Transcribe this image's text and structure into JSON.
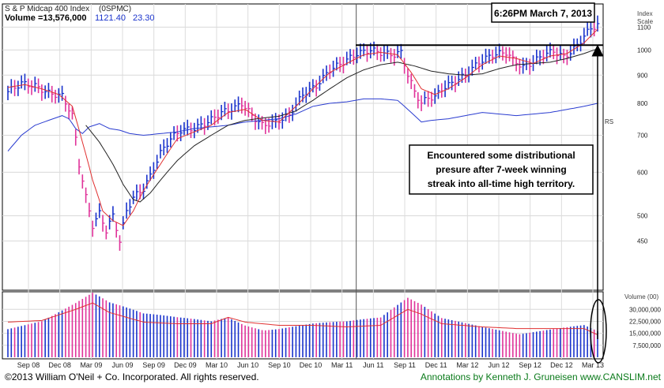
{
  "header": {
    "index_name": "S & P Midcap 400 Index",
    "symbol": "(0SPMC)",
    "volume_label": "Volume =13,576,000",
    "price": "1121.40",
    "change": "23.30",
    "timestamp": "6:26PM March 7, 2013"
  },
  "axis": {
    "index_title": "Index",
    "scale_title": "Scale",
    "volume_title": "Volume (00)",
    "rs_label": "RS"
  },
  "annotation": {
    "line1": "Encountered some distributional",
    "line2": "presure after 7-week winning",
    "line3": "streak into all-time high territory."
  },
  "footer": {
    "copyright": "©2013 William O'Neil + Co. Incorporated. All rights reserved.",
    "annotations_by": "Annotations by Kenneth J. Gruneisen www.CANSLIM.net"
  },
  "colors": {
    "up_bar": "#1a33cc",
    "down_bar": "#e0339a",
    "ma_short": "#e03030",
    "ma_long": "#222222",
    "rs_line": "#2a3cd0",
    "footer_left": "#000000",
    "footer_right": "#0a7a1a"
  },
  "chart_data": {
    "type": "bar",
    "ylim": [
      370,
      1200
    ],
    "price_ticks": [
      1100,
      1000,
      900,
      800,
      700,
      600,
      500,
      450
    ],
    "volume_ticks": [
      "30,000,000",
      "22,500,000",
      "15,000,000",
      "7,500,000"
    ],
    "volume_tick_values": [
      30000000,
      22500000,
      15000000,
      7500000
    ],
    "volume_max": 40000000,
    "x_tick_labels": [
      "Sep 08",
      "Dec 08",
      "Mar 09",
      "Jun 09",
      "Sep 09",
      "Dec 09",
      "Mar 10",
      "Jun 10",
      "Sep 10",
      "Dec 10",
      "Mar 11",
      "Jun 11",
      "Sep 11",
      "Dec 11",
      "Mar 12",
      "Jun 12",
      "Sep 12",
      "Dec 12",
      "Mar 13"
    ],
    "price_keypoints": [
      [
        0,
        840
      ],
      [
        4,
        870
      ],
      [
        8,
        860
      ],
      [
        12,
        835
      ],
      [
        16,
        825
      ],
      [
        19,
        760
      ],
      [
        21,
        620
      ],
      [
        23,
        540
      ],
      [
        25,
        480
      ],
      [
        27,
        505
      ],
      [
        29,
        470
      ],
      [
        31,
        500
      ],
      [
        33,
        450
      ],
      [
        35,
        510
      ],
      [
        37,
        540
      ],
      [
        40,
        560
      ],
      [
        42,
        590
      ],
      [
        45,
        650
      ],
      [
        48,
        690
      ],
      [
        51,
        715
      ],
      [
        55,
        720
      ],
      [
        59,
        740
      ],
      [
        63,
        770
      ],
      [
        67,
        785
      ],
      [
        69,
        800
      ],
      [
        72,
        760
      ],
      [
        75,
        730
      ],
      [
        79,
        740
      ],
      [
        83,
        760
      ],
      [
        87,
        830
      ],
      [
        91,
        860
      ],
      [
        95,
        920
      ],
      [
        99,
        950
      ],
      [
        103,
        985
      ],
      [
        107,
        1000
      ],
      [
        111,
        985
      ],
      [
        114,
        980
      ],
      [
        116,
        990
      ],
      [
        118,
        900
      ],
      [
        120,
        840
      ],
      [
        122,
        800
      ],
      [
        124,
        820
      ],
      [
        126,
        820
      ],
      [
        128,
        850
      ],
      [
        131,
        870
      ],
      [
        135,
        900
      ],
      [
        139,
        950
      ],
      [
        143,
        980
      ],
      [
        147,
        990
      ],
      [
        149,
        960
      ],
      [
        152,
        930
      ],
      [
        155,
        950
      ],
      [
        158,
        980
      ],
      [
        161,
        995
      ],
      [
        164,
        970
      ],
      [
        166,
        990
      ],
      [
        168,
        1020
      ],
      [
        170,
        1060
      ],
      [
        172,
        1095
      ],
      [
        174,
        1110
      ]
    ],
    "ma_short_keypoints": [
      [
        0,
        855
      ],
      [
        5,
        865
      ],
      [
        10,
        850
      ],
      [
        15,
        830
      ],
      [
        19,
        790
      ],
      [
        22,
        680
      ],
      [
        25,
        580
      ],
      [
        28,
        510
      ],
      [
        31,
        490
      ],
      [
        34,
        480
      ],
      [
        37,
        510
      ],
      [
        40,
        555
      ],
      [
        45,
        620
      ],
      [
        50,
        690
      ],
      [
        55,
        710
      ],
      [
        60,
        730
      ],
      [
        65,
        770
      ],
      [
        70,
        780
      ],
      [
        75,
        745
      ],
      [
        80,
        740
      ],
      [
        85,
        790
      ],
      [
        90,
        850
      ],
      [
        95,
        910
      ],
      [
        100,
        945
      ],
      [
        105,
        980
      ],
      [
        110,
        990
      ],
      [
        115,
        980
      ],
      [
        119,
        910
      ],
      [
        122,
        850
      ],
      [
        126,
        830
      ],
      [
        130,
        850
      ],
      [
        135,
        890
      ],
      [
        140,
        940
      ],
      [
        145,
        975
      ],
      [
        150,
        965
      ],
      [
        155,
        945
      ],
      [
        160,
        975
      ],
      [
        165,
        985
      ],
      [
        170,
        1030
      ],
      [
        174,
        1090
      ]
    ],
    "ma_long_keypoints": [
      [
        23,
        730
      ],
      [
        27,
        680
      ],
      [
        31,
        620
      ],
      [
        34,
        570
      ],
      [
        37,
        535
      ],
      [
        39,
        530
      ],
      [
        42,
        550
      ],
      [
        46,
        590
      ],
      [
        50,
        630
      ],
      [
        55,
        670
      ],
      [
        60,
        700
      ],
      [
        65,
        730
      ],
      [
        70,
        745
      ],
      [
        75,
        752
      ],
      [
        80,
        758
      ],
      [
        85,
        775
      ],
      [
        90,
        810
      ],
      [
        95,
        850
      ],
      [
        100,
        890
      ],
      [
        105,
        920
      ],
      [
        110,
        940
      ],
      [
        115,
        950
      ],
      [
        120,
        935
      ],
      [
        125,
        915
      ],
      [
        130,
        905
      ],
      [
        135,
        900
      ],
      [
        140,
        905
      ],
      [
        145,
        925
      ],
      [
        150,
        940
      ],
      [
        155,
        945
      ],
      [
        160,
        950
      ],
      [
        165,
        965
      ],
      [
        170,
        985
      ],
      [
        174,
        1005
      ]
    ],
    "rs_keypoints": [
      [
        0,
        655
      ],
      [
        4,
        700
      ],
      [
        8,
        730
      ],
      [
        12,
        745
      ],
      [
        16,
        760
      ],
      [
        18,
        750
      ],
      [
        20,
        720
      ],
      [
        22,
        705
      ],
      [
        24,
        725
      ],
      [
        27,
        735
      ],
      [
        30,
        720
      ],
      [
        33,
        715
      ],
      [
        36,
        705
      ],
      [
        40,
        700
      ],
      [
        45,
        705
      ],
      [
        50,
        710
      ],
      [
        55,
        720
      ],
      [
        60,
        725
      ],
      [
        65,
        730
      ],
      [
        70,
        740
      ],
      [
        75,
        745
      ],
      [
        80,
        750
      ],
      [
        85,
        765
      ],
      [
        90,
        790
      ],
      [
        95,
        800
      ],
      [
        100,
        805
      ],
      [
        105,
        815
      ],
      [
        110,
        815
      ],
      [
        115,
        810
      ],
      [
        118,
        780
      ],
      [
        120,
        760
      ],
      [
        122,
        740
      ],
      [
        125,
        745
      ],
      [
        130,
        750
      ],
      [
        135,
        760
      ],
      [
        140,
        770
      ],
      [
        145,
        765
      ],
      [
        150,
        760
      ],
      [
        155,
        765
      ],
      [
        160,
        770
      ],
      [
        165,
        780
      ],
      [
        170,
        790
      ],
      [
        174,
        800
      ]
    ],
    "volume_keypoints": [
      [
        0,
        22000000
      ],
      [
        10,
        23000000
      ],
      [
        20,
        30000000
      ],
      [
        25,
        34000000
      ],
      [
        30,
        28000000
      ],
      [
        35,
        25000000
      ],
      [
        40,
        22000000
      ],
      [
        50,
        21000000
      ],
      [
        60,
        21000000
      ],
      [
        65,
        25000000
      ],
      [
        70,
        22000000
      ],
      [
        80,
        20000000
      ],
      [
        90,
        20000000
      ],
      [
        100,
        19000000
      ],
      [
        110,
        20000000
      ],
      [
        118,
        30000000
      ],
      [
        122,
        27000000
      ],
      [
        128,
        21000000
      ],
      [
        140,
        19000000
      ],
      [
        150,
        18000000
      ],
      [
        160,
        18000000
      ],
      [
        170,
        18000000
      ],
      [
        174,
        14000000
      ]
    ],
    "resistance_level": 1020,
    "ma_short_name": "",
    "ma_long_name": ""
  }
}
